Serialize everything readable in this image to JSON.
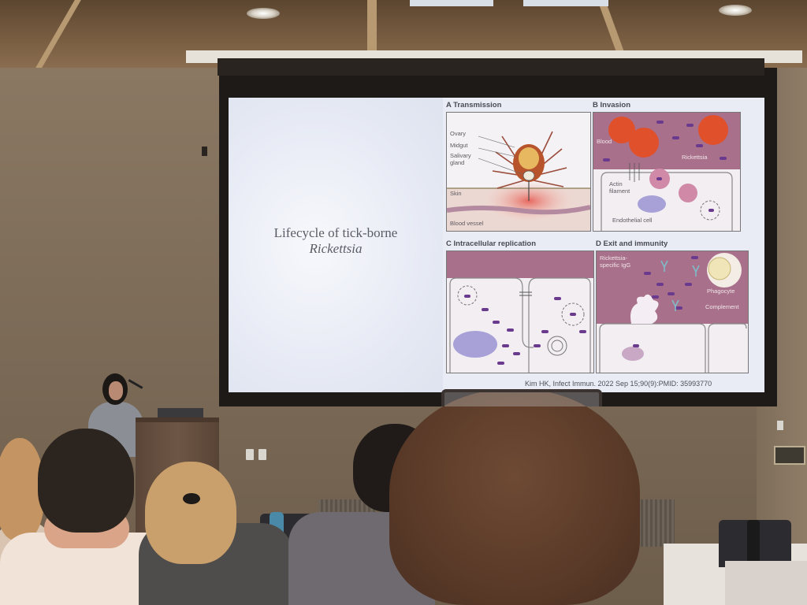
{
  "slide": {
    "title_line1": "Lifecycle of tick-borne",
    "title_line2": "Rickettsia",
    "citation": "Kim HK, Infect Immun. 2022 Sep 15;90(9):PMID: 35993770"
  },
  "panels": {
    "a": {
      "label": "A  Transmission",
      "annotations": [
        "Ovary",
        "Midgut",
        "Salivary",
        "gland",
        "Skin",
        "Blood vessel"
      ]
    },
    "b": {
      "label": "B  Invasion",
      "annotations": [
        "Blood",
        "Rickettsia",
        "Actin",
        "filament",
        "Endothelial cell"
      ]
    },
    "c": {
      "label": "C  Intracellular replication"
    },
    "d": {
      "label": "D  Exit and immunity",
      "annotations": [
        "Rickettsia-",
        "specific IgG",
        "Phagocyte",
        "Complement"
      ]
    }
  },
  "colors": {
    "slide_bg": "#e9ecf4",
    "tissue_mauve": "#a8708a",
    "rickettsia_purple": "#6a3a8e",
    "blood_cell_red": "#e0502a"
  }
}
